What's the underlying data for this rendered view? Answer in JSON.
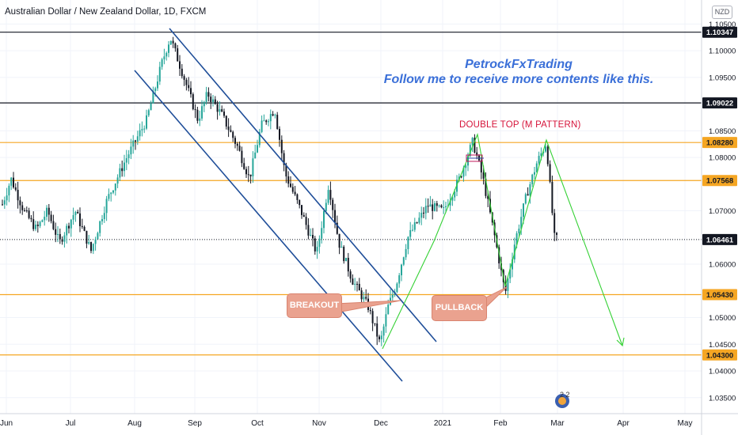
{
  "chart": {
    "title": "Australian Dollar / New Zealand Dollar, 1D, FXCM",
    "currency": "NZD",
    "watermark_line1": "PetrockFxTrading",
    "watermark_line2": "Follow me to receive more contents like this.",
    "pattern_label": "DOUBLE TOP (M PATTERN)",
    "callout_breakout": "BREAKOUT",
    "callout_pullback": "PULLBACK",
    "stamp_text": "2 2"
  },
  "chart_data": {
    "type": "candlestick",
    "symbol": "AUDNZD",
    "timeframe": "1D",
    "x_tick_labels": [
      "Jun",
      "Jul",
      "Aug",
      "Sep",
      "Oct",
      "Nov",
      "Dec",
      "2021",
      "Feb",
      "Mar",
      "Apr",
      "May"
    ],
    "y_tick_labels": [
      "1.10500",
      "1.10000",
      "1.09500",
      "1.08500",
      "1.08000",
      "1.07000",
      "1.06000",
      "1.05000",
      "1.04500",
      "1.04000",
      "1.03500"
    ],
    "ylim": [
      1.032,
      1.1095
    ],
    "price_scale_badges": [
      {
        "label": "1.10347",
        "value": 1.10347,
        "style": "dark"
      },
      {
        "label": "1.09022",
        "value": 1.09022,
        "style": "dark"
      },
      {
        "label": "1.08280",
        "value": 1.0828,
        "style": "orange"
      },
      {
        "label": "1.07568",
        "value": 1.07568,
        "style": "orange"
      },
      {
        "label": "1.06461",
        "value": 1.06461,
        "style": "dark"
      },
      {
        "label": "1.05430",
        "value": 1.0543,
        "style": "orange"
      },
      {
        "label": "1.04300",
        "value": 1.043,
        "style": "orange"
      }
    ],
    "horizontal_levels": [
      {
        "value": 1.10347,
        "color": "#131722",
        "style": "solid"
      },
      {
        "value": 1.09022,
        "color": "#131722",
        "style": "solid"
      },
      {
        "value": 1.0828,
        "color": "#f5a623",
        "style": "solid"
      },
      {
        "value": 1.07568,
        "color": "#f5a623",
        "style": "solid"
      },
      {
        "value": 1.06461,
        "color": "#131722",
        "style": "dotted"
      },
      {
        "value": 1.0543,
        "color": "#f5a623",
        "style": "solid"
      },
      {
        "value": 1.043,
        "color": "#f5a623",
        "style": "solid"
      }
    ],
    "last_price": 1.06461,
    "colors": {
      "up": "#26a69a",
      "down": "#131722",
      "channel": "#1f4e99",
      "pattern": "#35d135",
      "support": "#f5a623",
      "grid": "#f0f3fa"
    }
  }
}
